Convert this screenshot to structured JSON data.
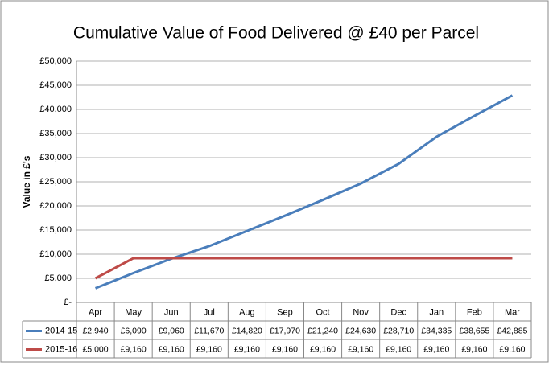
{
  "chart_data": {
    "type": "line",
    "title": "Cumulative Value of Food Delivered @ £40 per Parcel",
    "y_label": "Value in £'s",
    "categories": [
      "Apr",
      "May",
      "Jun",
      "Jul",
      "Aug",
      "Sep",
      "Oct",
      "Nov",
      "Dec",
      "Jan",
      "Feb",
      "Mar"
    ],
    "series": [
      {
        "name": "2014-15",
        "color": "#4a7ebb",
        "values": [
          2940,
          6090,
          9060,
          11670,
          14820,
          17970,
          21240,
          24630,
          28710,
          34335,
          38655,
          42885
        ],
        "value_labels": [
          "£2,940",
          "£6,090",
          "£9,060",
          "£11,670",
          "£14,820",
          "£17,970",
          "£21,240",
          "£24,630",
          "£28,710",
          "£34,335",
          "£38,655",
          "£42,885"
        ]
      },
      {
        "name": "2015-16",
        "color": "#be4b48",
        "values": [
          5000,
          9160,
          9160,
          9160,
          9160,
          9160,
          9160,
          9160,
          9160,
          9160,
          9160,
          9160
        ],
        "value_labels": [
          "£5,000",
          "£9,160",
          "£9,160",
          "£9,160",
          "£9,160",
          "£9,160",
          "£9,160",
          "£9,160",
          "£9,160",
          "£9,160",
          "£9,160",
          "£9,160"
        ]
      }
    ],
    "ylim": [
      0,
      50000
    ],
    "yticks": [
      {
        "value": 0,
        "label": "£-"
      },
      {
        "value": 5000,
        "label": "£5,000"
      },
      {
        "value": 10000,
        "label": "£10,000"
      },
      {
        "value": 15000,
        "label": "£15,000"
      },
      {
        "value": 20000,
        "label": "£20,000"
      },
      {
        "value": 25000,
        "label": "£25,000"
      },
      {
        "value": 30000,
        "label": "£30,000"
      },
      {
        "value": 35000,
        "label": "£35,000"
      },
      {
        "value": 40000,
        "label": "£40,000"
      },
      {
        "value": 45000,
        "label": "£45,000"
      },
      {
        "value": 50000,
        "label": "£50,000"
      }
    ],
    "grid": true
  }
}
